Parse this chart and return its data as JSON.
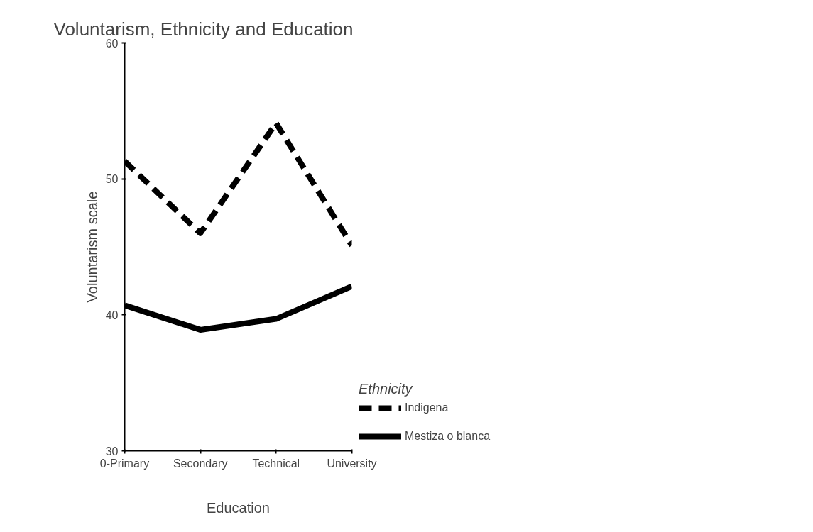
{
  "chart_data": {
    "type": "line",
    "title": "Voluntarism, Ethnicity and Education",
    "xlabel": "Education",
    "ylabel": "Voluntarism scale",
    "legend_title": "Ethnicity",
    "categories": [
      "0-Primary",
      "Secondary",
      "Technical",
      "University"
    ],
    "series": [
      {
        "name": "Indigena",
        "color": "#000000",
        "line_style": "dashed",
        "values": [
          51.3,
          46.0,
          54.1,
          45.1
        ]
      },
      {
        "name": "Mestiza o blanca",
        "color": "#000000",
        "line_style": "solid",
        "values": [
          40.7,
          38.9,
          39.7,
          42.1
        ]
      }
    ],
    "ylim": [
      30,
      60
    ],
    "yticks": [
      30,
      40,
      50,
      60
    ],
    "grid": false,
    "legend": "right",
    "marker": "none"
  }
}
